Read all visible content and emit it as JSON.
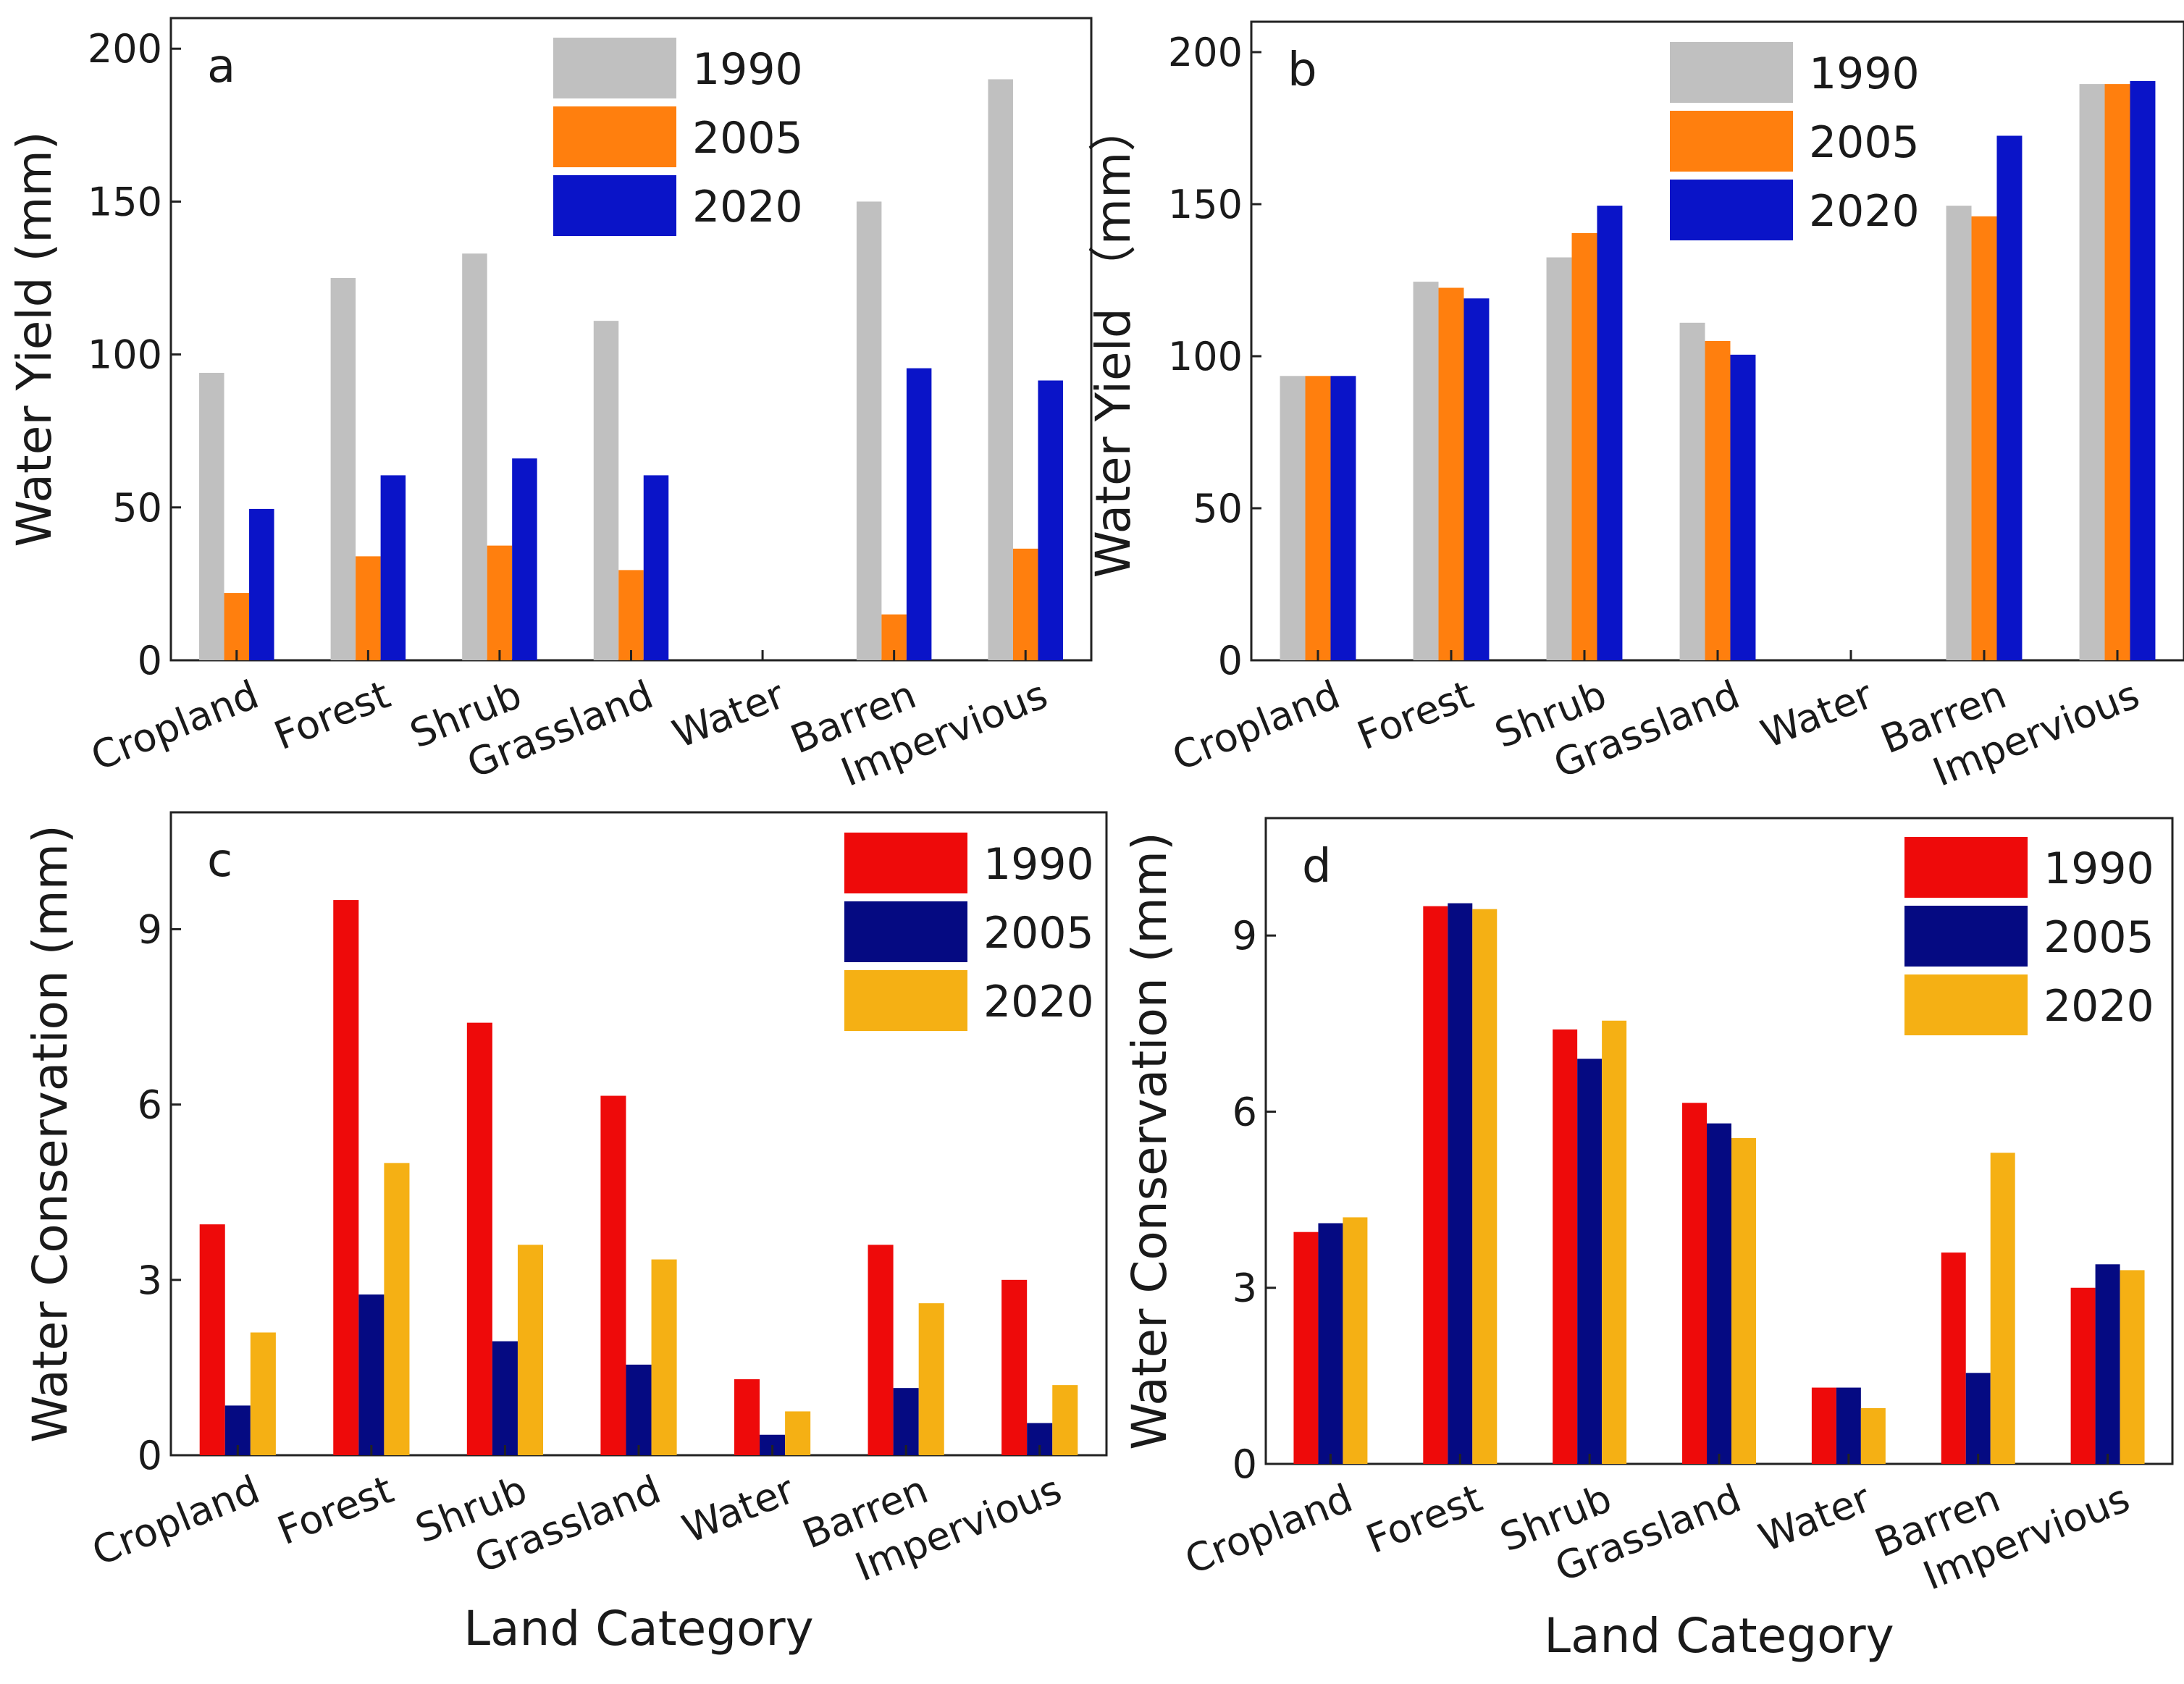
{
  "figure": {
    "x_axis_title": "Land Category",
    "categories": [
      "Cropland",
      "Forest",
      "Shrub",
      "Grassland",
      "Water",
      "Barren",
      "Impervious"
    ]
  },
  "chart_data": [
    {
      "panel": "a",
      "type": "bar",
      "title": "",
      "xlabel": "",
      "ylabel": "Water Yield (mm)",
      "ylim": [
        0,
        210
      ],
      "yticks": [
        0,
        50,
        100,
        150,
        200
      ],
      "legend_position": "top-right",
      "categories": [
        "Cropland",
        "Forest",
        "Shrub",
        "Grassland",
        "Water",
        "Barren",
        "Impervious"
      ],
      "series": [
        {
          "name": "1990",
          "color": "#c0c0c0",
          "values": [
            94,
            125,
            133,
            111,
            0,
            150,
            190
          ]
        },
        {
          "name": "2005",
          "color": "#ff7f0e",
          "values": [
            22,
            34,
            37.5,
            29.5,
            0,
            15,
            36.5
          ]
        },
        {
          "name": "2020",
          "color": "#0a14c8",
          "values": [
            49.5,
            60.5,
            66,
            60.5,
            0,
            95.5,
            91.5
          ]
        }
      ]
    },
    {
      "panel": "b",
      "type": "bar",
      "title": "",
      "xlabel": "",
      "ylabel": "Water Yield （mm）",
      "ylim": [
        0,
        210
      ],
      "yticks": [
        0,
        50,
        100,
        150,
        200
      ],
      "legend_position": "top-right",
      "categories": [
        "Cropland",
        "Forest",
        "Shrub",
        "Grassland",
        "Water",
        "Barren",
        "Impervious"
      ],
      "series": [
        {
          "name": "1990",
          "color": "#c0c0c0",
          "values": [
            93.5,
            124.5,
            132.5,
            111,
            0,
            149.5,
            189.5
          ]
        },
        {
          "name": "2005",
          "color": "#ff7f0e",
          "values": [
            93.5,
            122.5,
            140.5,
            105,
            0,
            146,
            189.5
          ]
        },
        {
          "name": "2020",
          "color": "#0a14c8",
          "values": [
            93.5,
            119,
            149.5,
            100.5,
            0,
            172.5,
            190.5
          ]
        }
      ]
    },
    {
      "panel": "c",
      "type": "bar",
      "title": "",
      "xlabel": "Land Category",
      "ylabel": "Water Conservation (mm)",
      "ylim": [
        0,
        11
      ],
      "yticks": [
        0,
        3,
        6,
        9
      ],
      "legend_position": "top-right",
      "categories": [
        "Cropland",
        "Forest",
        "Shrub",
        "Grassland",
        "Water",
        "Barren",
        "Impervious"
      ],
      "series": [
        {
          "name": "1990",
          "color": "#ee0a0a",
          "values": [
            3.95,
            9.5,
            7.4,
            6.15,
            1.3,
            3.6,
            3.0
          ]
        },
        {
          "name": "2005",
          "color": "#050a82",
          "values": [
            0.85,
            2.75,
            1.95,
            1.55,
            0.35,
            1.15,
            0.55
          ]
        },
        {
          "name": "2020",
          "color": "#f5b014",
          "values": [
            2.1,
            5.0,
            3.6,
            3.35,
            0.75,
            2.6,
            1.2
          ]
        }
      ]
    },
    {
      "panel": "d",
      "type": "bar",
      "title": "",
      "xlabel": "Land Category",
      "ylabel": "Water Conservation (mm)",
      "ylim": [
        0,
        11
      ],
      "yticks": [
        0,
        3,
        6,
        9
      ],
      "legend_position": "top-right",
      "categories": [
        "Cropland",
        "Forest",
        "Shrub",
        "Grassland",
        "Water",
        "Barren",
        "Impervious"
      ],
      "series": [
        {
          "name": "1990",
          "color": "#ee0a0a",
          "values": [
            3.95,
            9.5,
            7.4,
            6.15,
            1.3,
            3.6,
            3.0
          ]
        },
        {
          "name": "2005",
          "color": "#050a82",
          "values": [
            4.1,
            9.55,
            6.9,
            5.8,
            1.3,
            1.55,
            3.4
          ]
        },
        {
          "name": "2020",
          "color": "#f5b014",
          "values": [
            4.2,
            9.45,
            7.55,
            5.55,
            0.95,
            5.3,
            3.3
          ]
        }
      ]
    }
  ]
}
